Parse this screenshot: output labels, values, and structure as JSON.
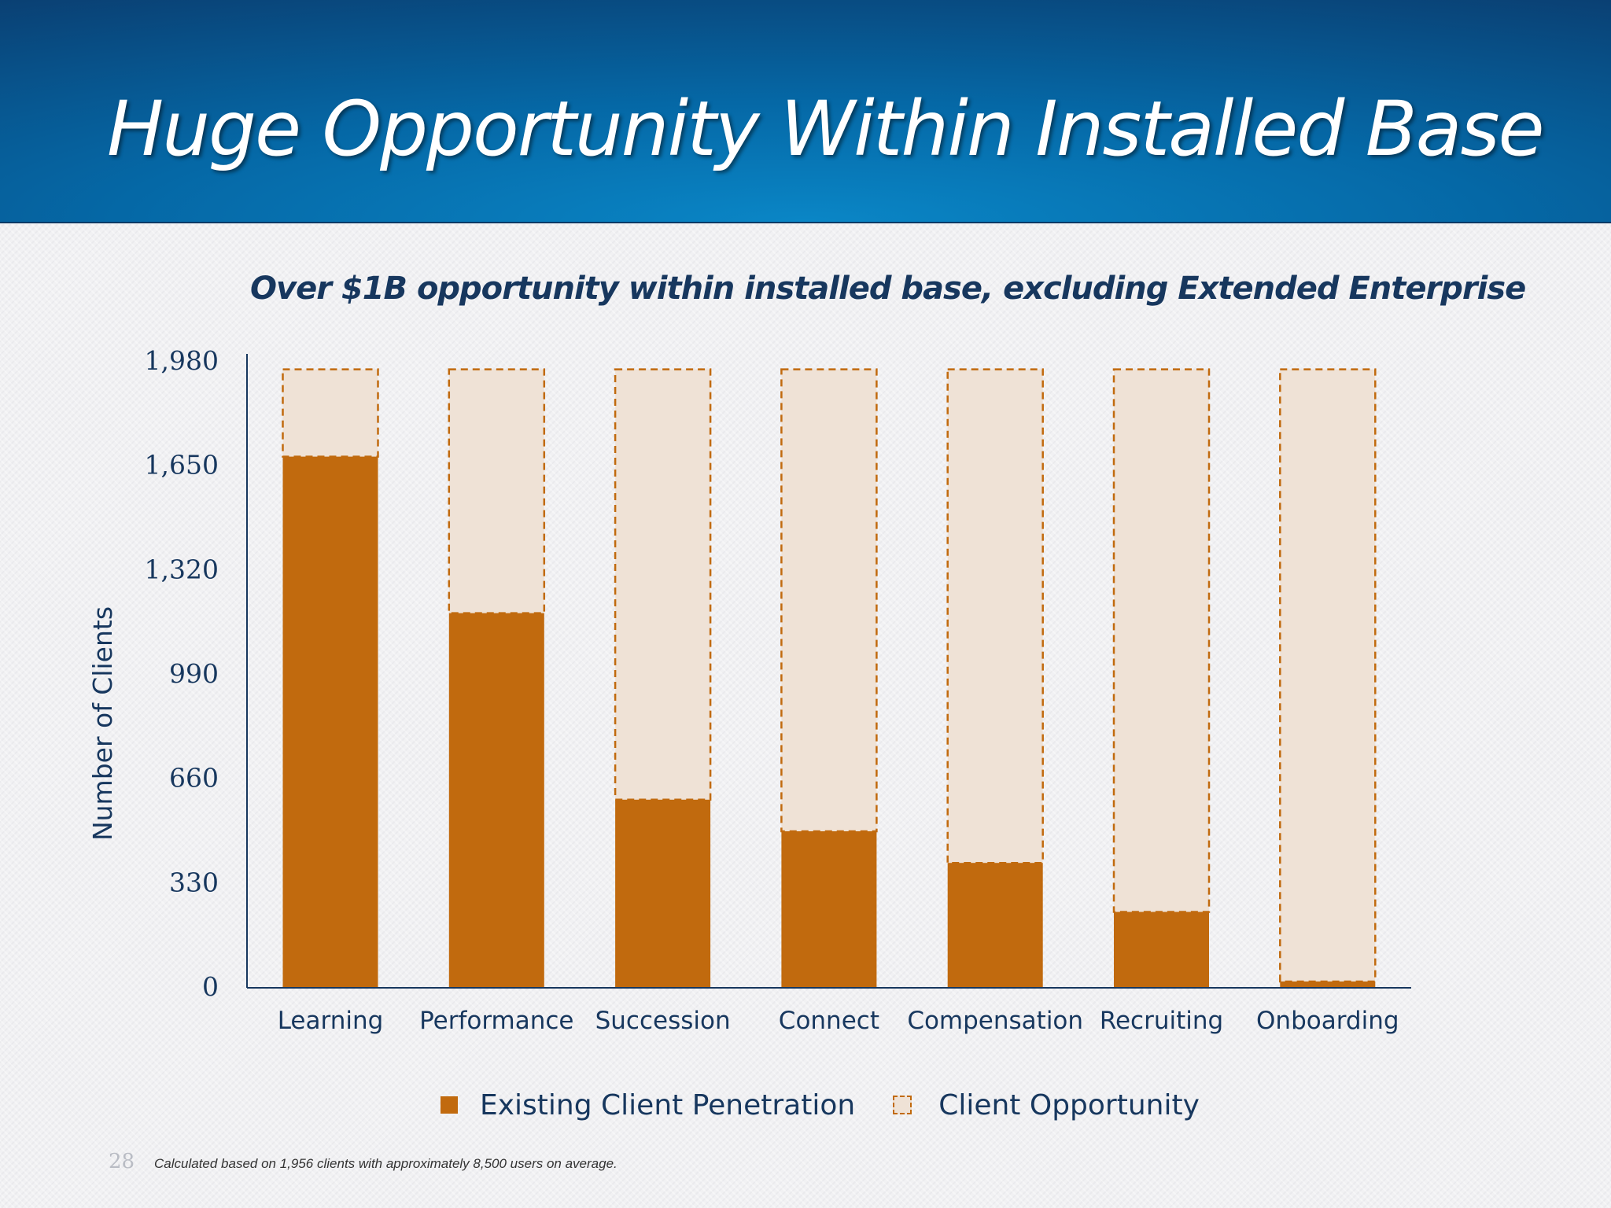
{
  "slide": {
    "title": "Huge Opportunity Within Installed Base",
    "subtitle": "Over $1B opportunity within installed base, excluding Extended Enterprise",
    "page_number": "28",
    "footnote": "Calculated based on 1,956 clients with approximately 8,500 users on average."
  },
  "legend": {
    "existing": "Existing Client Penetration",
    "opportunity": "Client Opportunity"
  },
  "colors": {
    "existing": "#c16a0e",
    "opportunity_fill": "#efe2d6",
    "opportunity_border": "#c16a0e",
    "axis": "#17375e"
  },
  "chart_data": {
    "type": "bar",
    "stacked": true,
    "title": "Over $1B opportunity within installed base, excluding Extended Enterprise",
    "xlabel": "",
    "ylabel": "Number of Clients",
    "ylim": [
      0,
      1980
    ],
    "yticks": [
      0,
      330,
      660,
      990,
      1320,
      1650,
      1980
    ],
    "ytick_labels": [
      "0",
      "330",
      "660",
      "990",
      "1,320",
      "1,650",
      "1,980"
    ],
    "grid": false,
    "legend_position": "bottom",
    "categories": [
      "Learning",
      "Performance",
      "Succession",
      "Connect",
      "Compensation",
      "Recruiting",
      "Onboarding"
    ],
    "series": [
      {
        "name": "Existing Client Penetration",
        "style": "solid",
        "values": [
          1680,
          1185,
          595,
          495,
          395,
          240,
          20
        ]
      },
      {
        "name": "Client Opportunity",
        "style": "dashed",
        "values": [
          276,
          771,
          1361,
          1461,
          1561,
          1716,
          1936
        ]
      }
    ]
  }
}
